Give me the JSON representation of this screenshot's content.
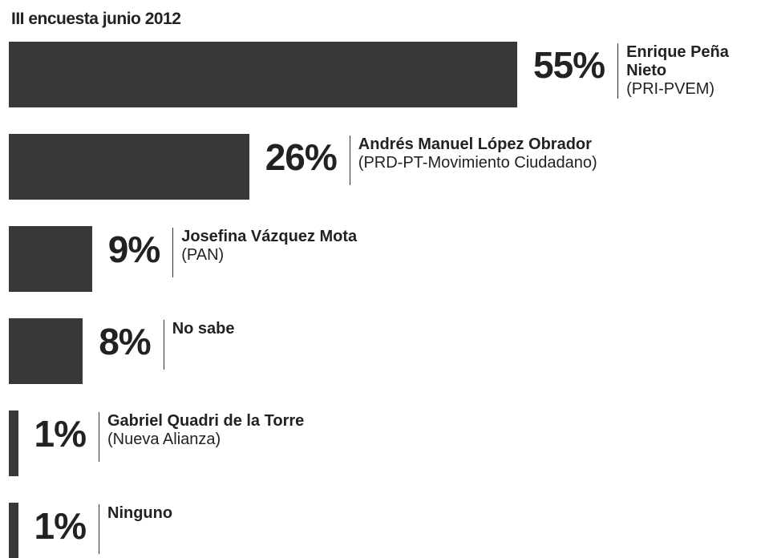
{
  "chart_data": {
    "type": "bar",
    "orientation": "horizontal",
    "title": "III encuesta junio 2012",
    "categories": [
      "Enrique Peña Nieto",
      "Andrés Manuel López Obrador",
      "Josefina Vázquez Mota",
      "No sabe",
      "Gabriel Quadri de la Torre",
      "Ninguno"
    ],
    "parties": [
      "(PRI-PVEM)",
      "(PRD-PT-Movimiento Ciudadano)",
      "(PAN)",
      null,
      "(Nueva Alianza)",
      null
    ],
    "values": [
      55,
      26,
      9,
      8,
      1,
      1
    ],
    "value_labels": [
      "55%",
      "26%",
      "9%",
      "8%",
      "1%",
      "1%"
    ],
    "color": "#383838"
  }
}
